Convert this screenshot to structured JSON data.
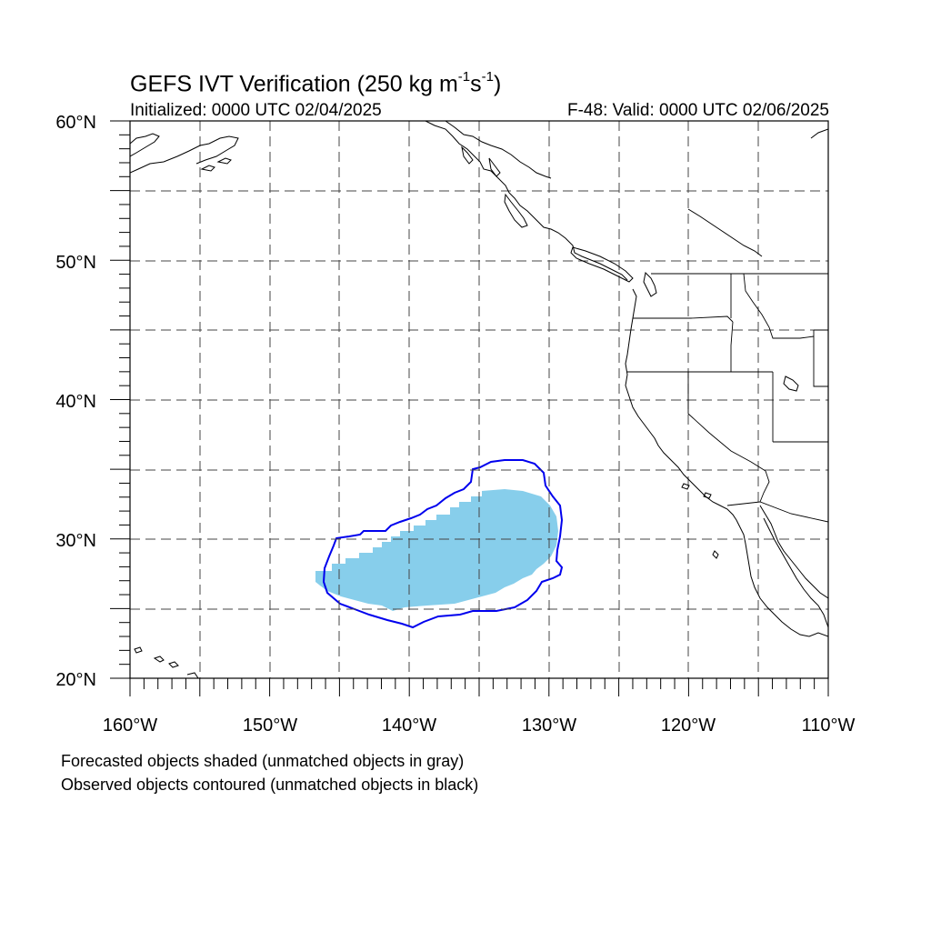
{
  "title_main": "GEFS IVT Verification (250 kg m",
  "title_exp1": "-1",
  "title_mid": "s",
  "title_exp2": "-1",
  "title_end": ")",
  "initialized": "Initialized: 0000 UTC 02/04/2025",
  "valid": "F-48: Valid: 0000 UTC 02/06/2025",
  "lat_labels": [
    "60°N",
    "50°N",
    "40°N",
    "30°N",
    "20°N"
  ],
  "lon_labels": [
    "160°W",
    "150°W",
    "140°W",
    "130°W",
    "120°W",
    "110°W"
  ],
  "map_extent": {
    "lon": [
      -160,
      -110
    ],
    "lat": [
      20,
      60
    ]
  },
  "colors": {
    "forecast_fill": "#87ceeb",
    "observed_contour": "#0000ee",
    "coastline": "#000000",
    "grid": "#555555"
  },
  "legend": {
    "forecast": "Forecasted objects shaded (unmatched objects in gray)",
    "observed": "Observed objects contoured (unmatched objects in black)"
  }
}
